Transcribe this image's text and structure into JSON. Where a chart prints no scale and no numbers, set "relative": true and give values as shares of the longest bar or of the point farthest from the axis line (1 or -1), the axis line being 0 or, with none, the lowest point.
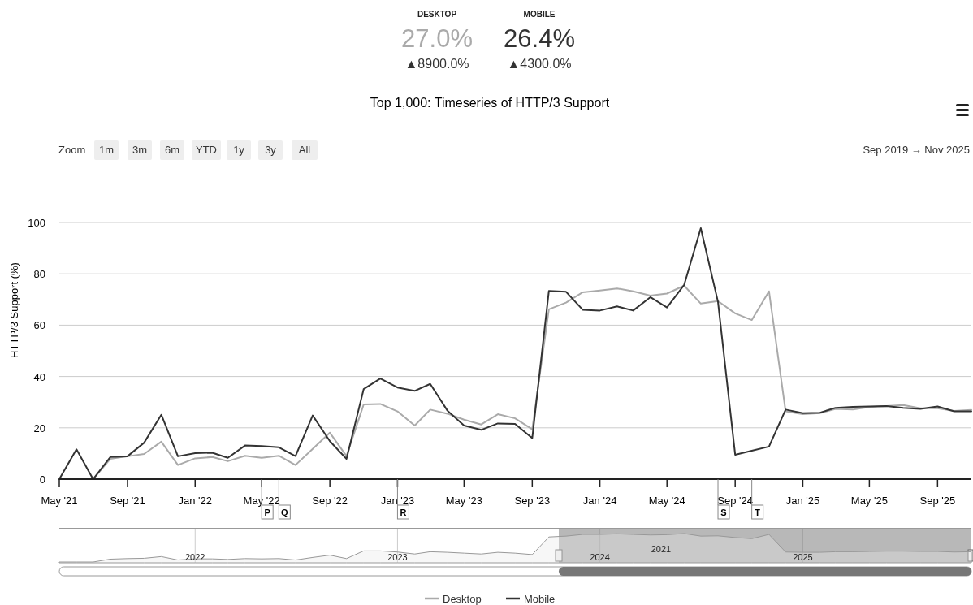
{
  "chart_data": [
    {
      "type": "other",
      "annotations": [
        "DESKTOP",
        "27.0%",
        "▲8900.0%",
        "MOBILE",
        "26.4%",
        "▲4300.0%",
        "Zoom",
        "1m",
        "3m",
        "6m",
        "YTD",
        "1y",
        "3y",
        "All",
        "Sep 2019 → Nov 2025"
      ]
    },
    {
      "type": "line",
      "title": "Top 1,000: Timeseries of HTTP/3 Support",
      "ylabel": "HTTP/3 Support (%)",
      "x": [
        "2021-05",
        "2021-06",
        "2021-07",
        "2021-08",
        "2021-09",
        "2021-10",
        "2021-11",
        "2021-12",
        "2022-01",
        "2022-02",
        "2022-03",
        "2022-04",
        "2022-05",
        "2022-06",
        "2022-07",
        "2022-08",
        "2022-09",
        "2022-10",
        "2022-11",
        "2022-12",
        "2023-01",
        "2023-02",
        "2023-03",
        "2023-04",
        "2023-05",
        "2023-06",
        "2023-07",
        "2023-08",
        "2023-09",
        "2023-10",
        "2023-11",
        "2023-12",
        "2024-01",
        "2024-02",
        "2024-03",
        "2024-04",
        "2024-05",
        "2024-06",
        "2024-07",
        "2024-08",
        "2024-09",
        "2024-10",
        "2024-11",
        "2024-12",
        "2025-01",
        "2025-02",
        "2025-03",
        "2025-04",
        "2025-05",
        "2025-06",
        "2025-07",
        "2025-08",
        "2025-09",
        "2025-10",
        "2025-11"
      ],
      "series": [
        {
          "name": "Desktop",
          "color": "#aaaaaa",
          "values": [
            0,
            0,
            0,
            7.9,
            8.9,
            9.8,
            14.6,
            5.5,
            8.1,
            8.6,
            7,
            9.1,
            8.3,
            9.1,
            5.5,
            11.8,
            18.1,
            9,
            29.1,
            29.3,
            26.4,
            20.9,
            27.1,
            25.5,
            23.2,
            21.3,
            25.3,
            23.7,
            19.4,
            66.2,
            68.8,
            72.8,
            73.5,
            74.3,
            73.2,
            71.5,
            72.3,
            75.4,
            68.4,
            69.4,
            64.6,
            62,
            73.2,
            26.4,
            25.3,
            25.7,
            27.4,
            27.1,
            28.1,
            28.5,
            28.9,
            27.6,
            27.6,
            26.6,
            27
          ]
        },
        {
          "name": "Mobile",
          "color": "#333333",
          "values": [
            0,
            11.6,
            0,
            8.6,
            8.9,
            14.2,
            25.1,
            8.9,
            10.1,
            10.3,
            8.3,
            13.1,
            12.9,
            12.4,
            9,
            24.8,
            14.8,
            7.9,
            35.1,
            39.2,
            35.7,
            34.4,
            37.1,
            26.7,
            20.9,
            19.2,
            21.7,
            21.5,
            16,
            73.3,
            73,
            66,
            65.7,
            67.3,
            65.7,
            70.9,
            66.9,
            75.7,
            97.8,
            69.1,
            9.5,
            11.1,
            12.7,
            27.1,
            25.7,
            25.9,
            27.8,
            28.2,
            28.3,
            28.5,
            27.8,
            27.4,
            28.3,
            26.4,
            26.4
          ]
        }
      ],
      "xlim": [
        "2021-05",
        "2025-11"
      ],
      "xticks": [
        {
          "value": "2021-05",
          "label": "May '21"
        },
        {
          "value": "2021-09",
          "label": "Sep '21"
        },
        {
          "value": "2022-01",
          "label": "Jan '22"
        },
        {
          "value": "2022-05",
          "label": "May '22"
        },
        {
          "value": "2022-09",
          "label": "Sep '22"
        },
        {
          "value": "2023-01",
          "label": "Jan '23"
        },
        {
          "value": "2023-05",
          "label": "May '23"
        },
        {
          "value": "2023-09",
          "label": "Sep '23"
        },
        {
          "value": "2024-01",
          "label": "Jan '24"
        },
        {
          "value": "2024-05",
          "label": "May '24"
        },
        {
          "value": "2024-09",
          "label": "Sep '24"
        },
        {
          "value": "2025-01",
          "label": "Jan '25"
        },
        {
          "value": "2025-05",
          "label": "May '25"
        },
        {
          "value": "2025-09",
          "label": "Sep '25"
        }
      ],
      "ylim": [
        0,
        100
      ],
      "yticks": [
        0,
        20,
        40,
        60,
        80,
        100
      ],
      "grid": "y",
      "legend": "bottom",
      "marker": "none",
      "line_style": "solid",
      "ref_lines": [
        {
          "axis": "x",
          "value": "2022-05",
          "label": "P"
        },
        {
          "axis": "x",
          "value": "2022-06",
          "label": "Q"
        },
        {
          "axis": "x",
          "value": "2023-01",
          "label": "R"
        },
        {
          "axis": "x",
          "value": "2024-08",
          "label": "S"
        },
        {
          "axis": "x",
          "value": "2024-10",
          "label": "T"
        }
      ]
    },
    {
      "type": "area",
      "relative": true,
      "tick_labels": "x",
      "grid": "x",
      "x": [
        "2021-05",
        "2021-06",
        "2021-07",
        "2021-08",
        "2021-09",
        "2021-10",
        "2021-11",
        "2021-12",
        "2022-01",
        "2022-02",
        "2022-03",
        "2022-04",
        "2022-05",
        "2022-06",
        "2022-07",
        "2022-08",
        "2022-09",
        "2022-10",
        "2022-11",
        "2022-12",
        "2023-01",
        "2023-02",
        "2023-03",
        "2023-04",
        "2023-05",
        "2023-06",
        "2023-07",
        "2023-08",
        "2023-09",
        "2023-10",
        "2023-11",
        "2023-12",
        "2024-01",
        "2024-02",
        "2024-03",
        "2024-04",
        "2024-05",
        "2024-06",
        "2024-07",
        "2024-08",
        "2024-09",
        "2024-10",
        "2024-11",
        "2024-12",
        "2025-01",
        "2025-02",
        "2025-03",
        "2025-04",
        "2025-05",
        "2025-06",
        "2025-07",
        "2025-08",
        "2025-09",
        "2025-10",
        "2025-11"
      ],
      "series": [
        {
          "color": "#999999",
          "values": [
            0,
            0,
            0,
            0.1,
            0.12,
            0.13,
            0.19,
            0.07,
            0.11,
            0.11,
            0.09,
            0.12,
            0.11,
            0.12,
            0.07,
            0.16,
            0.24,
            0.12,
            0.39,
            0.39,
            0.35,
            0.28,
            0.36,
            0.34,
            0.31,
            0.28,
            0.34,
            0.31,
            0.26,
            0.88,
            0.91,
            0.97,
            0.97,
            0.99,
            0.97,
            0.95,
            0.96,
            1,
            0.91,
            0.92,
            0.86,
            0.82,
            0.97,
            0.35,
            0.34,
            0.34,
            0.36,
            0.36,
            0.37,
            0.38,
            0.38,
            0.37,
            0.37,
            0.35,
            0.36
          ]
        }
      ],
      "xlim": [
        "2021-05",
        "2025-11"
      ],
      "xticks": [
        {
          "value": "2022-01",
          "label": "2022"
        },
        {
          "value": "2023-01",
          "label": "2023"
        },
        {
          "value": "2024-01",
          "label": "2024"
        },
        {
          "value": "2025-01",
          "label": "2025"
        }
      ],
      "annotations": [
        "2021"
      ]
    }
  ]
}
